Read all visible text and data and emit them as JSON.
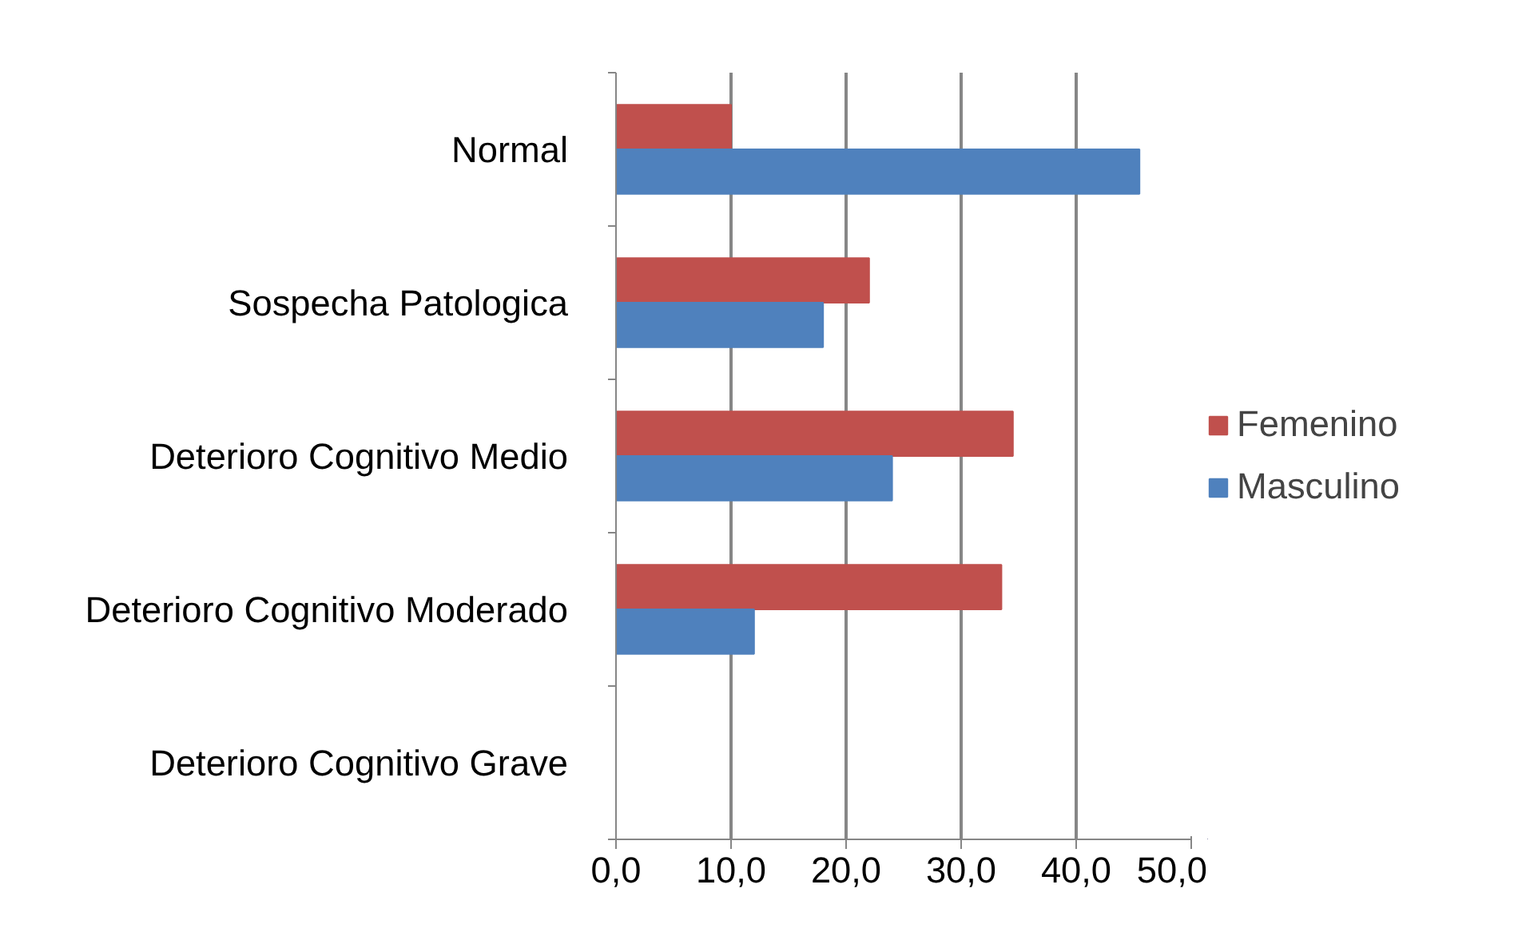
{
  "chart_data": {
    "type": "bar",
    "orientation": "horizontal",
    "categories": [
      "Normal",
      "Sospecha Patologica",
      "Deterioro Cognitivo Medio",
      "Deterioro Cognitivo Moderado",
      "Deterioro Cognitivo Grave"
    ],
    "series": [
      {
        "name": "Femenino",
        "color": "#c0504d",
        "values": [
          10,
          22,
          34.5,
          33.5,
          0
        ]
      },
      {
        "name": "Masculino",
        "color": "#4f81bd",
        "values": [
          45.5,
          18,
          24,
          12,
          0
        ]
      }
    ],
    "xlim": [
      0,
      50
    ],
    "xticks": [
      {
        "value": 0,
        "label": "0,0"
      },
      {
        "value": 10,
        "label": "10,0"
      },
      {
        "value": 20,
        "label": "20,0"
      },
      {
        "value": 30,
        "label": "30,0"
      },
      {
        "value": 40,
        "label": "40,0"
      },
      {
        "value": 50,
        "label": "50,0"
      }
    ],
    "grid": "x",
    "legend": "right"
  }
}
